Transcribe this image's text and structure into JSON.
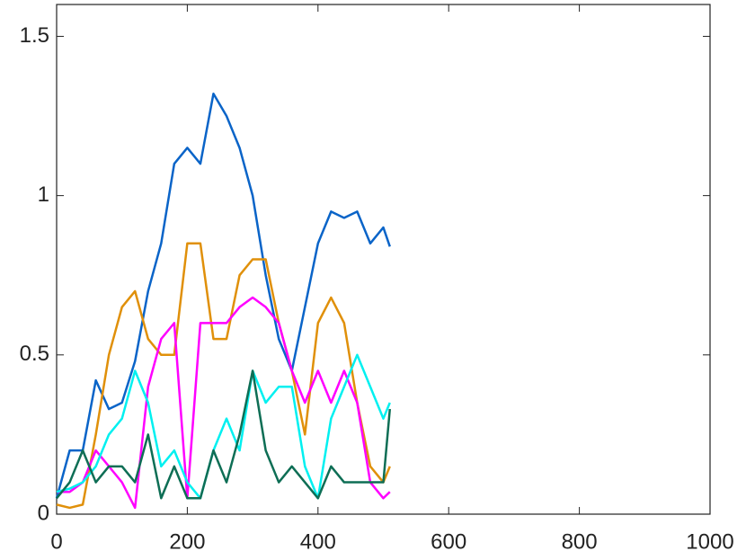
{
  "chart_data": {
    "type": "line",
    "x": [
      0,
      20,
      40,
      60,
      80,
      100,
      120,
      140,
      160,
      180,
      200,
      220,
      240,
      260,
      280,
      300,
      320,
      340,
      360,
      380,
      400,
      420,
      440,
      460,
      480,
      500,
      510
    ],
    "series": [
      {
        "color": "#0a64c8",
        "values": [
          0.05,
          0.2,
          0.2,
          0.42,
          0.33,
          0.35,
          0.48,
          0.7,
          0.85,
          1.1,
          1.15,
          1.1,
          1.32,
          1.25,
          1.15,
          1.0,
          0.75,
          0.55,
          0.45,
          0.65,
          0.85,
          0.95,
          0.93,
          0.95,
          0.85,
          0.9,
          0.84
        ]
      },
      {
        "color": "#e0900a",
        "values": [
          0.03,
          0.02,
          0.03,
          0.25,
          0.5,
          0.65,
          0.7,
          0.55,
          0.5,
          0.5,
          0.85,
          0.85,
          0.55,
          0.55,
          0.75,
          0.8,
          0.8,
          0.6,
          0.45,
          0.25,
          0.6,
          0.68,
          0.6,
          0.35,
          0.15,
          0.1,
          0.15
        ]
      },
      {
        "color": "#ff00ff",
        "values": [
          0.07,
          0.07,
          0.1,
          0.2,
          0.15,
          0.1,
          0.02,
          0.4,
          0.55,
          0.6,
          0.05,
          0.6,
          0.6,
          0.6,
          0.65,
          0.68,
          0.65,
          0.6,
          0.45,
          0.35,
          0.45,
          0.35,
          0.45,
          0.35,
          0.1,
          0.05,
          0.07
        ]
      },
      {
        "color": "#00f0f0",
        "values": [
          0.07,
          0.08,
          0.1,
          0.15,
          0.25,
          0.3,
          0.45,
          0.35,
          0.15,
          0.2,
          0.1,
          0.05,
          0.2,
          0.3,
          0.2,
          0.45,
          0.35,
          0.4,
          0.4,
          0.15,
          0.05,
          0.3,
          0.4,
          0.5,
          0.4,
          0.3,
          0.35
        ]
      },
      {
        "color": "#0e6e55",
        "values": [
          0.05,
          0.1,
          0.2,
          0.1,
          0.15,
          0.15,
          0.1,
          0.25,
          0.05,
          0.15,
          0.05,
          0.05,
          0.2,
          0.1,
          0.25,
          0.45,
          0.2,
          0.1,
          0.15,
          0.1,
          0.05,
          0.15,
          0.1,
          0.1,
          0.1,
          0.1,
          0.33
        ]
      }
    ],
    "xlim": [
      0,
      1000
    ],
    "xticks": [
      0,
      200,
      400,
      600,
      800,
      1000
    ],
    "ylim": [
      0,
      1.6
    ],
    "yticks": [
      0,
      0.5,
      1,
      1.5
    ],
    "grid": false
  }
}
